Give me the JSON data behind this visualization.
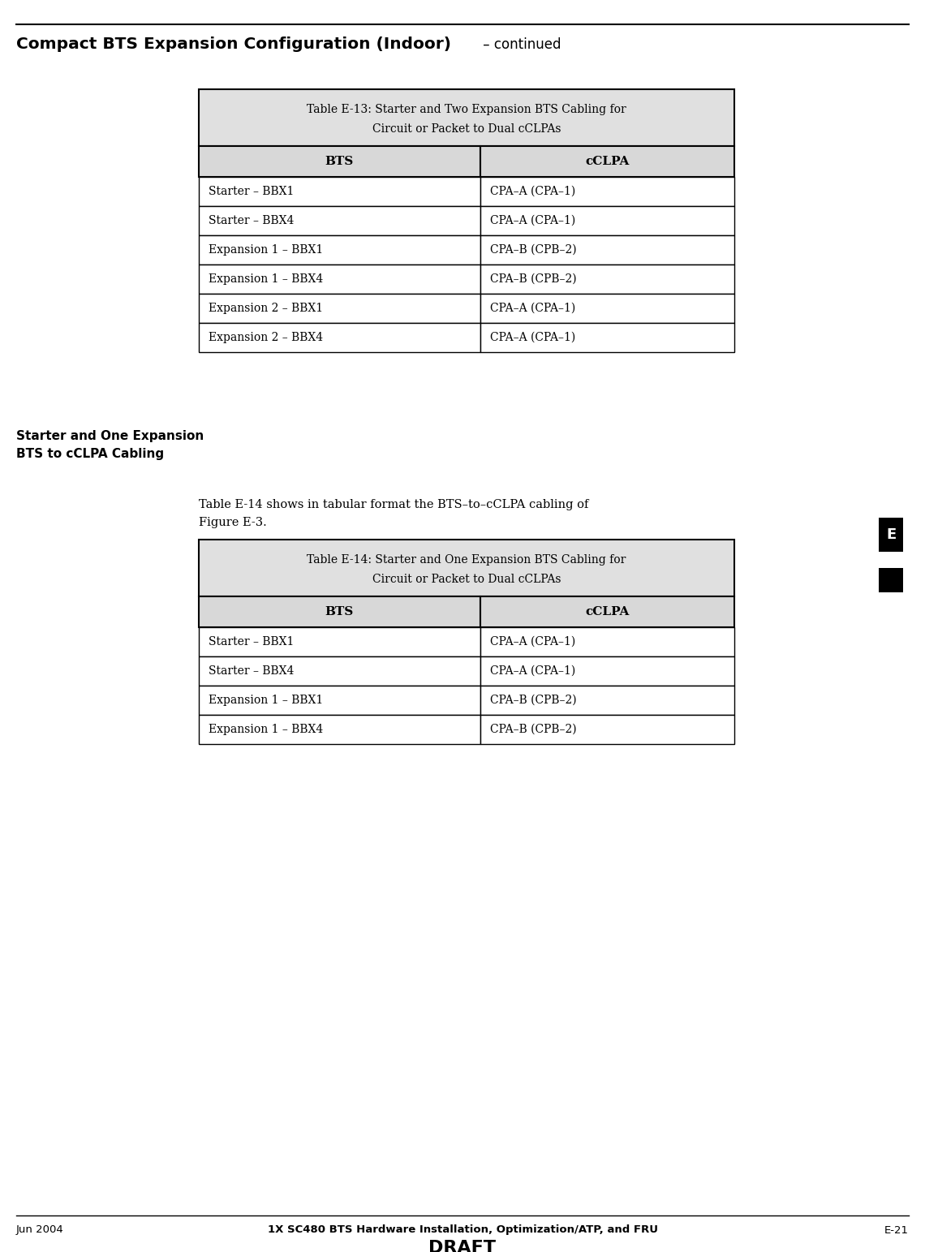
{
  "page_title_bold": "Compact BTS Expansion Configuration (Indoor)",
  "page_title_continued": " – continued",
  "footer_left": "Jun 2004",
  "footer_center": "1X SC480 BTS Hardware Installation, Optimization/ATP, and FRU",
  "footer_right": "E-21",
  "footer_draft": "DRAFT",
  "side_label_line1": "Starter and One Expansion",
  "side_label_line2": "BTS to cCLPA Cabling",
  "side_E_label": "E",
  "body_text_line1": "Table E-14 shows in tabular format the BTS–to–cCLPA cabling of",
  "body_text_line2": "Figure E-3.",
  "table1_title_bold": "Table E-13:",
  "table1_title_rest": " Starter and Two Expansion BTS Cabling for",
  "table1_title_rest2": "Circuit or Packet to Dual cCLPAs",
  "table1_col_headers": [
    "BTS",
    "cCLPA"
  ],
  "table1_rows": [
    [
      "Starter – BBX1",
      "CPA–A (CPA–1)"
    ],
    [
      "Starter – BBX4",
      "CPA–A (CPA–1)"
    ],
    [
      "Expansion 1 – BBX1",
      "CPA–B (CPB–2)"
    ],
    [
      "Expansion 1 – BBX4",
      "CPA–B (CPB–2)"
    ],
    [
      "Expansion 2 – BBX1",
      "CPA–A (CPA–1)"
    ],
    [
      "Expansion 2 – BBX4",
      "CPA–A (CPA–1)"
    ]
  ],
  "table2_title_bold": "Table E-14:",
  "table2_title_rest": " Starter and One Expansion BTS Cabling for",
  "table2_title_rest2": "Circuit or Packet to Dual cCLPAs",
  "table2_col_headers": [
    "BTS",
    "cCLPA"
  ],
  "table2_rows": [
    [
      "Starter – BBX1",
      "CPA–A (CPA–1)"
    ],
    [
      "Starter – BBX4",
      "CPA–A (CPA–1)"
    ],
    [
      "Expansion 1 – BBX1",
      "CPA–B (CPB–2)"
    ],
    [
      "Expansion 1 – BBX4",
      "CPA–B (CPB–2)"
    ]
  ],
  "bg_color": "#ffffff",
  "border_color": "#000000",
  "table_title_bg": "#e0e0e0",
  "table_header_bg": "#d8d8d8",
  "table_row_bg": "#ffffff",
  "fig_width": 11.4,
  "fig_height": 15.43,
  "dpi": 100
}
